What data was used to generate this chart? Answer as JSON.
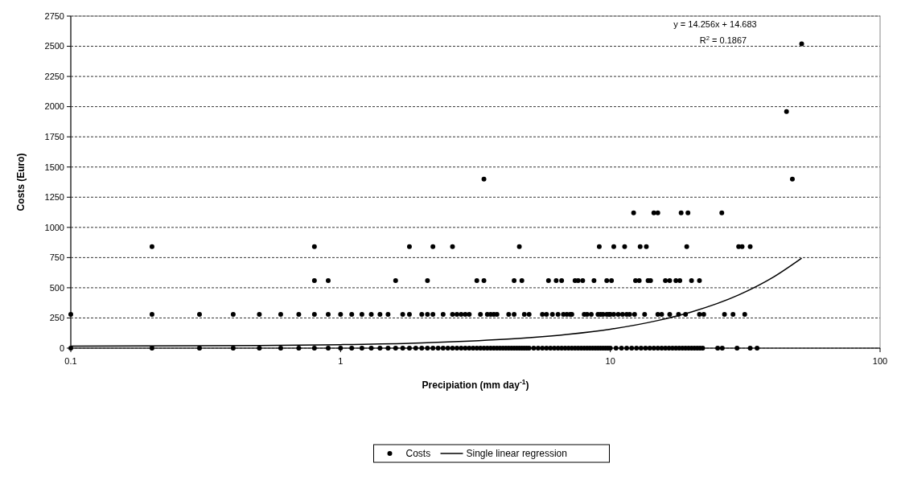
{
  "chart_data": {
    "type": "scatter",
    "xlabel": "Precipiation (mm day$^{-1}$)",
    "ylabel": "Costs (Euro)",
    "log": "x",
    "xlim": [
      0.1,
      100
    ],
    "xticks": [
      0.1,
      1,
      10,
      100
    ],
    "ylim": [
      0,
      2750
    ],
    "yticks": [
      0,
      250,
      500,
      750,
      1000,
      1250,
      1500,
      1750,
      2000,
      2250,
      2500,
      2750
    ],
    "grid": "y",
    "legend": "bottom",
    "annotations": [
      "y = 14.256x + 14.683",
      "R$^{2}$ = 0.1867"
    ],
    "series": [
      {
        "name": "Costs",
        "marker": "circle",
        "color": "#000000",
        "x": [
          0.1,
          0.2,
          0.3,
          0.4,
          0.5,
          0.6,
          0.7,
          0.8,
          0.9,
          1.0,
          1.1,
          1.2,
          1.3,
          1.4,
          1.5,
          1.6,
          1.7,
          1.8,
          1.9,
          2.0,
          2.1,
          2.2,
          2.3,
          2.4,
          2.5,
          2.6,
          2.7,
          2.8,
          2.9,
          3.0,
          3.1,
          3.2,
          3.3,
          3.4,
          3.5,
          3.6,
          3.7,
          3.8,
          3.9,
          4.0,
          4.1,
          4.2,
          4.3,
          4.4,
          4.5,
          4.6,
          4.7,
          4.8,
          4.9,
          5.0,
          5.2,
          5.4,
          5.6,
          5.8,
          6.0,
          6.2,
          6.4,
          6.6,
          6.8,
          7.0,
          7.2,
          7.4,
          7.6,
          7.8,
          8.0,
          8.2,
          8.4,
          8.6,
          8.8,
          9.0,
          9.2,
          9.4,
          9.6,
          9.8,
          10.0,
          10.5,
          11.0,
          11.5,
          12.0,
          12.5,
          13.0,
          13.5,
          14.0,
          14.5,
          15.0,
          15.5,
          16.0,
          16.5,
          17.0,
          17.5,
          18.0,
          18.5,
          19.0,
          19.5,
          20.0,
          20.5,
          21.0,
          21.5,
          22.0,
          25.0,
          26.0,
          29.5,
          33.0,
          35.0,
          0.1,
          0.2,
          0.3,
          0.4,
          0.5,
          0.6,
          0.7,
          0.8,
          0.9,
          1.0,
          1.1,
          1.2,
          1.3,
          1.4,
          1.5,
          1.7,
          1.8,
          2.0,
          2.1,
          2.2,
          2.4,
          2.6,
          2.7,
          2.8,
          2.9,
          3.0,
          3.3,
          3.5,
          3.6,
          3.7,
          3.8,
          4.2,
          4.4,
          4.8,
          5.0,
          5.6,
          5.8,
          6.1,
          6.4,
          6.7,
          6.9,
          7.1,
          7.2,
          8.0,
          8.2,
          8.5,
          9.0,
          9.2,
          9.4,
          9.7,
          9.9,
          10.0,
          10.3,
          10.7,
          11.1,
          11.5,
          11.8,
          12.3,
          13.4,
          15.0,
          15.5,
          16.6,
          17.9,
          19.0,
          21.4,
          22.2,
          26.5,
          28.5,
          31.5,
          0.8,
          0.9,
          1.6,
          2.1,
          3.2,
          3.4,
          4.4,
          4.7,
          5.9,
          6.3,
          6.6,
          7.4,
          7.6,
          7.9,
          8.7,
          9.7,
          10.1,
          12.4,
          12.8,
          13.8,
          14.1,
          16.0,
          16.6,
          17.5,
          18.1,
          20.0,
          21.4,
          0.2,
          0.8,
          1.8,
          2.2,
          2.6,
          4.6,
          9.1,
          10.3,
          11.3,
          12.9,
          13.6,
          19.2,
          29.9,
          30.8,
          33.0,
          12.2,
          14.5,
          15.0,
          18.3,
          19.4,
          25.9,
          3.4,
          47.3,
          45.0,
          51.2
        ],
        "values": [
          0,
          0,
          0,
          0,
          0,
          0,
          0,
          0,
          0,
          0,
          0,
          0,
          0,
          0,
          0,
          0,
          0,
          0,
          0,
          0,
          0,
          0,
          0,
          0,
          0,
          0,
          0,
          0,
          0,
          0,
          0,
          0,
          0,
          0,
          0,
          0,
          0,
          0,
          0,
          0,
          0,
          0,
          0,
          0,
          0,
          0,
          0,
          0,
          0,
          0,
          0,
          0,
          0,
          0,
          0,
          0,
          0,
          0,
          0,
          0,
          0,
          0,
          0,
          0,
          0,
          0,
          0,
          0,
          0,
          0,
          0,
          0,
          0,
          0,
          0,
          0,
          0,
          0,
          0,
          0,
          0,
          0,
          0,
          0,
          0,
          0,
          0,
          0,
          0,
          0,
          0,
          0,
          0,
          0,
          0,
          0,
          0,
          0,
          0,
          0,
          0,
          0,
          0,
          0,
          280,
          280,
          280,
          280,
          280,
          280,
          280,
          280,
          280,
          280,
          280,
          280,
          280,
          280,
          280,
          280,
          280,
          280,
          280,
          280,
          280,
          280,
          280,
          280,
          280,
          280,
          280,
          280,
          280,
          280,
          280,
          280,
          280,
          280,
          280,
          280,
          280,
          280,
          280,
          280,
          280,
          280,
          280,
          280,
          280,
          280,
          280,
          280,
          280,
          280,
          280,
          280,
          280,
          280,
          280,
          280,
          280,
          280,
          280,
          280,
          280,
          280,
          280,
          280,
          280,
          280,
          280,
          280,
          280,
          560,
          560,
          560,
          560,
          560,
          560,
          560,
          560,
          560,
          560,
          560,
          560,
          560,
          560,
          560,
          560,
          560,
          560,
          560,
          560,
          560,
          560,
          560,
          560,
          560,
          560,
          560,
          840,
          840,
          840,
          840,
          840,
          840,
          840,
          840,
          840,
          840,
          840,
          840,
          840,
          840,
          840,
          1120,
          1120,
          1120,
          1120,
          1120,
          1120,
          1400,
          1400,
          1960,
          2520
        ]
      },
      {
        "name": "Single linear regression",
        "type": "line",
        "color": "#000000",
        "x": [
          0.1,
          0.5,
          1,
          2,
          3,
          5,
          7,
          10,
          15,
          20,
          30,
          40,
          51.2
        ],
        "values": [
          16,
          22,
          29,
          43,
          58,
          86,
          115,
          157,
          229,
          300,
          442,
          585,
          745
        ]
      }
    ]
  }
}
